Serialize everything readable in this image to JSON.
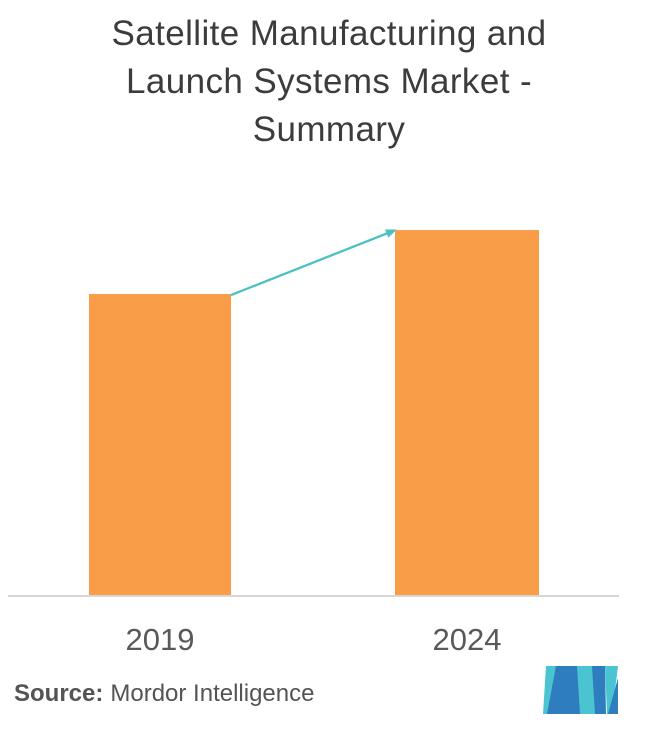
{
  "title": {
    "full": "Satellite Manufacturing and Launch Systems Market - Summary",
    "lines": [
      "Satellite Manufacturing and",
      "Launch Systems Market -",
      "Summary"
    ]
  },
  "chart_data": {
    "type": "bar",
    "title": "Satellite Manufacturing and Launch Systems Market - Summary",
    "categories": [
      "2019",
      "2024"
    ],
    "values": [
      82.5,
      100
    ],
    "values_note": "no y-axis shown; values are relative bar heights with 2024 bar = 100",
    "xlabel": "",
    "ylabel": "",
    "ylim": [
      0,
      100
    ],
    "grid": false,
    "legend": false,
    "bar_color": "#FA9D49",
    "axis_line_color": "#D5D6D8",
    "annotations": [
      {
        "type": "growth-arrow",
        "from": "top-right corner of 2019 bar",
        "to": "top-left corner of 2024 bar",
        "color": "#4CC1C1"
      }
    ]
  },
  "source": {
    "label": "Source:",
    "text": "Mordor Intelligence"
  },
  "logo": {
    "name": "mordor-intelligence-logo",
    "blue": "#2E7DBE",
    "teal": "#4AC4D0"
  },
  "colors": {
    "title_text": "#3C3C3C",
    "axis_label_text": "#58595B",
    "source_text": "#545457",
    "background": "#FFFFFF"
  }
}
